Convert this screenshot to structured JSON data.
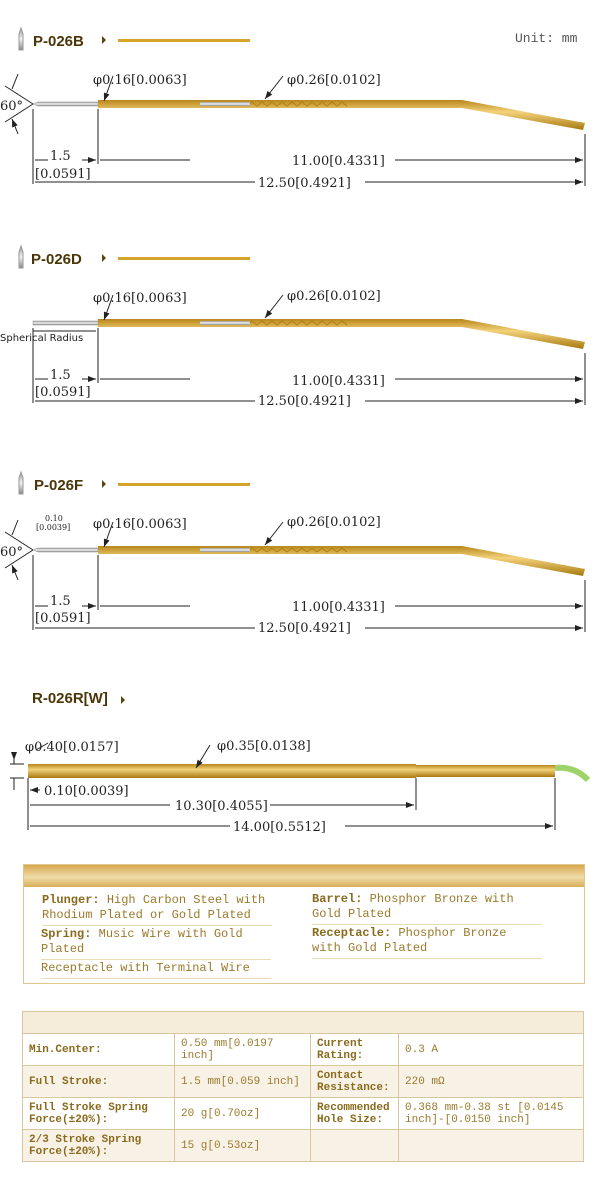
{
  "unit_label": "Unit: mm",
  "probes": [
    {
      "name": "P-026B",
      "plunger_dia": "φ0.16[0.0063]",
      "barrel_dia": "φ0.26[0.0102]",
      "tip_angle": "60°",
      "dim_plunger": "1.5",
      "dim_plunger_in": "[0.0591]",
      "dim_barrel": "11.00[0.4331]",
      "dim_total": "12.50[0.4921]"
    },
    {
      "name": "P-026D",
      "plunger_dia": "φ0.16[0.0063]",
      "barrel_dia": "φ0.26[0.0102]",
      "tip_note": "Spherical Radius",
      "dim_plunger": "1.5",
      "dim_plunger_in": "[0.0591]",
      "dim_barrel": "11.00[0.4331]",
      "dim_total": "12.50[0.4921]"
    },
    {
      "name": "P-026F",
      "plunger_dia": "φ0.16[0.0063]",
      "barrel_dia": "φ0.26[0.0102]",
      "tip_angle": "60°",
      "tip_flat": "0.10",
      "tip_flat_in": "[0.0039]",
      "dim_plunger": "1.5",
      "dim_plunger_in": "[0.0591]",
      "dim_barrel": "11.00[0.4331]",
      "dim_total": "12.50[0.4921]"
    }
  ],
  "receptacle": {
    "name": "R-026R[W]",
    "head_dia": "φ0.40[0.0157]",
    "body_dia": "φ0.35[0.0138]",
    "head_len": "0.10[0.0039]",
    "dim_body": "10.30[0.4055]",
    "dim_total": "14.00[0.5512]"
  },
  "materials": {
    "plunger_label": "Plunger:",
    "plunger": "High Carbon Steel with Rhodium Plated or Gold Plated",
    "spring_label": "Spring:",
    "spring": "Music Wire with Gold Plated",
    "receptacle_note": "Receptacle with Terminal Wire",
    "barrel_label": "Barrel:",
    "barrel": "Phosphor Bronze with Gold Plated",
    "receptacle_label": "Receptacle:",
    "receptacle": "Phosphor Bronze with Gold Plated"
  },
  "specs": [
    [
      "Min.Center:",
      "0.50 mm[0.0197 inch]",
      "Current Rating:",
      "0.3 A"
    ],
    [
      "Full Stroke:",
      "1.5 mm[0.059 inch]",
      "Contact Resistance:",
      "220 mΩ"
    ],
    [
      "Full Stroke Spring Force(±20%):",
      "20 g[0.70oz]",
      "Recommended Hole Size:",
      "0.368 mm-0.38 st [0.0145 inch]-[0.0150 inch]"
    ],
    [
      "2/3 Stroke Spring Force(±20%):",
      "15 g[0.53oz]",
      "",
      ""
    ]
  ],
  "colors": {
    "gold": "#d4a42c",
    "silver": "#c8c8c8",
    "wire": "#9ed36a",
    "text_gold": "#9a7a2c"
  }
}
